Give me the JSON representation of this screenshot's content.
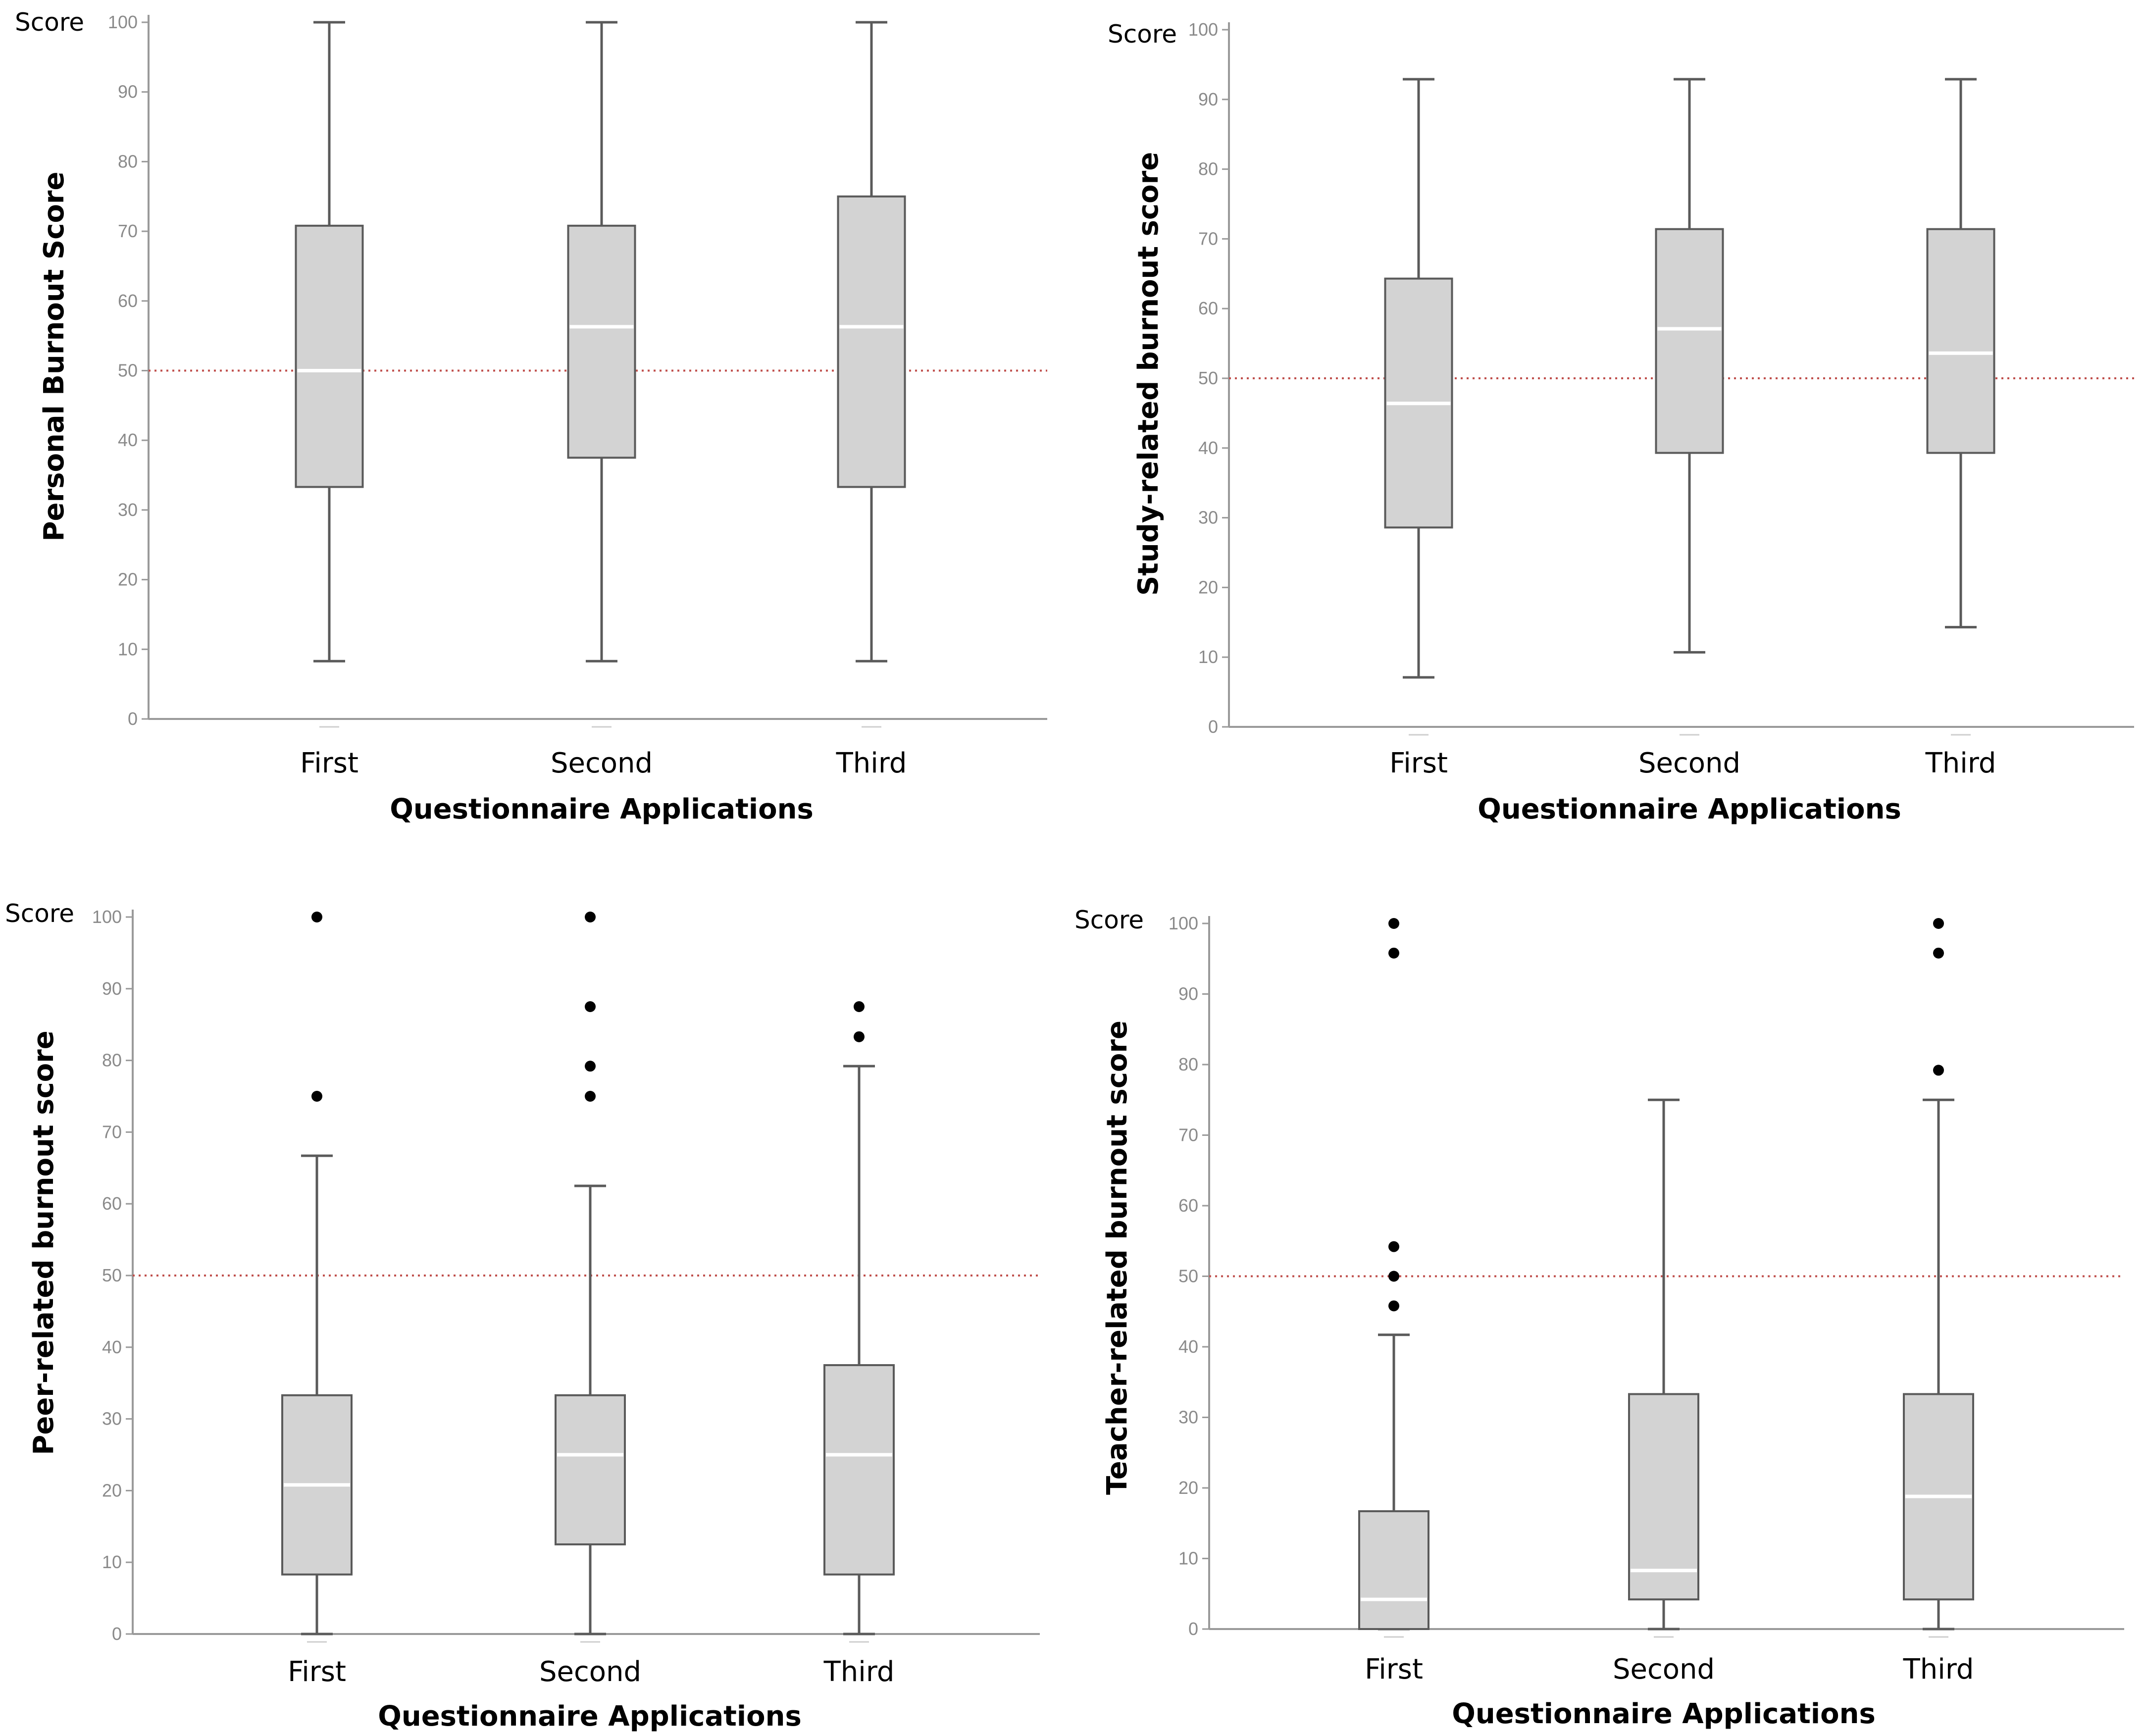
{
  "colors": {
    "box_fill": "#d3d3d3",
    "box_stroke": "#5a5a5a",
    "whisker": "#5a5a5a",
    "median": "#ffffff",
    "axis": "#9a9a9a",
    "reference_line": "#c0504d",
    "outlier": "#000000"
  },
  "chart_data": [
    {
      "type": "boxplot",
      "title": "",
      "score_label": "Score",
      "ylabel": "Personal Burnout Score",
      "xlabel": "Questionnaire Applications",
      "ylim": [
        0,
        100
      ],
      "yticks": [
        "0",
        "10",
        "20",
        "30",
        "40",
        "50",
        "60",
        "70",
        "80",
        "90",
        "100"
      ],
      "reference_line": 50,
      "categories": [
        "First",
        "Second",
        "Third"
      ],
      "boxes": [
        {
          "category": "First",
          "min": 8.3,
          "q1": 33.3,
          "median": 50,
          "q3": 70.8,
          "max": 100,
          "outliers": []
        },
        {
          "category": "Second",
          "min": 8.3,
          "q1": 37.5,
          "median": 56.3,
          "q3": 70.8,
          "max": 100,
          "outliers": []
        },
        {
          "category": "Third",
          "min": 8.3,
          "q1": 33.3,
          "median": 56.3,
          "q3": 75,
          "max": 100,
          "outliers": []
        }
      ]
    },
    {
      "type": "boxplot",
      "title": "",
      "score_label": "Score",
      "ylabel": "Study-related burnout score",
      "xlabel": "Questionnaire Applications",
      "ylim": [
        0,
        100
      ],
      "yticks": [
        "0",
        "10",
        "20",
        "30",
        "40",
        "50",
        "60",
        "70",
        "80",
        "90",
        "100"
      ],
      "reference_line": 50,
      "categories": [
        "First",
        "Second",
        "Third"
      ],
      "boxes": [
        {
          "category": "First",
          "min": 7.1,
          "q1": 28.6,
          "median": 46.4,
          "q3": 64.3,
          "max": 92.9,
          "outliers": []
        },
        {
          "category": "Second",
          "min": 10.7,
          "q1": 39.3,
          "median": 57.1,
          "q3": 71.4,
          "max": 92.9,
          "outliers": []
        },
        {
          "category": "Third",
          "min": 14.3,
          "q1": 39.3,
          "median": 53.6,
          "q3": 71.4,
          "max": 92.9,
          "outliers": []
        }
      ]
    },
    {
      "type": "boxplot",
      "title": "",
      "score_label": "Score",
      "ylabel": "Peer-related burnout score",
      "xlabel": "Questionnaire Applications",
      "ylim": [
        0,
        100
      ],
      "yticks": [
        "0",
        "10",
        "20",
        "30",
        "40",
        "50",
        "60",
        "70",
        "80",
        "90",
        "100"
      ],
      "reference_line": 50,
      "categories": [
        "First",
        "Second",
        "Third"
      ],
      "boxes": [
        {
          "category": "First",
          "min": 0,
          "q1": 8.3,
          "median": 20.8,
          "q3": 33.3,
          "max": 66.7,
          "outliers": [
            75,
            100
          ]
        },
        {
          "category": "Second",
          "min": 0,
          "q1": 12.5,
          "median": 25,
          "q3": 33.3,
          "max": 62.5,
          "outliers": [
            75,
            79.2,
            87.5,
            100
          ]
        },
        {
          "category": "Third",
          "min": 0,
          "q1": 8.3,
          "median": 25,
          "q3": 37.5,
          "max": 79.2,
          "outliers": [
            83.3,
            87.5
          ]
        }
      ]
    },
    {
      "type": "boxplot",
      "title": "",
      "score_label": "Score",
      "ylabel": "Teacher-related burnout score",
      "xlabel": "Questionnaire Applications",
      "ylim": [
        0,
        100
      ],
      "yticks": [
        "0",
        "10",
        "20",
        "30",
        "40",
        "50",
        "60",
        "70",
        "80",
        "90",
        "100"
      ],
      "reference_line": 50,
      "categories": [
        "First",
        "Second",
        "Third"
      ],
      "boxes": [
        {
          "category": "First",
          "min": 0,
          "q1": 0,
          "median": 4.2,
          "q3": 16.7,
          "max": 41.7,
          "outliers": [
            45.8,
            50,
            54.2,
            95.8,
            100
          ]
        },
        {
          "category": "Second",
          "min": 0,
          "q1": 4.2,
          "median": 8.3,
          "q3": 33.3,
          "max": 75,
          "outliers": []
        },
        {
          "category": "Third",
          "min": 0,
          "q1": 4.2,
          "median": 18.8,
          "q3": 33.3,
          "max": 75,
          "outliers": [
            79.2,
            95.8,
            100
          ]
        }
      ]
    }
  ]
}
